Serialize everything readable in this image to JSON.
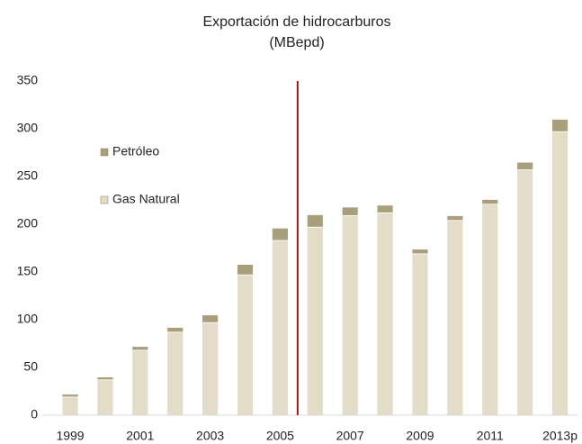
{
  "chart_data": {
    "type": "stacked_bar",
    "title": "Exportación de hidrocarburos",
    "subtitle": "(MBepd)",
    "categories": [
      "1999",
      null,
      "2001",
      null,
      "2003",
      null,
      "2005",
      null,
      "2007",
      null,
      "2009",
      null,
      "2011",
      null,
      "2013p"
    ],
    "series": [
      {
        "name": "Gas Natural",
        "color": "#e2dcc8",
        "values": [
          19,
          37,
          68,
          87,
          97,
          147,
          183,
          197,
          209,
          212,
          169,
          204,
          221,
          257,
          297
        ]
      },
      {
        "name": "Petróleo",
        "color": "#aa9f7c",
        "values": [
          3,
          3,
          4,
          5,
          8,
          11,
          13,
          13,
          9,
          8,
          5,
          5,
          5,
          8,
          13
        ]
      }
    ],
    "ylim": [
      0,
      350
    ],
    "yticks": [
      0,
      50,
      100,
      150,
      200,
      250,
      300,
      350
    ]
  }
}
